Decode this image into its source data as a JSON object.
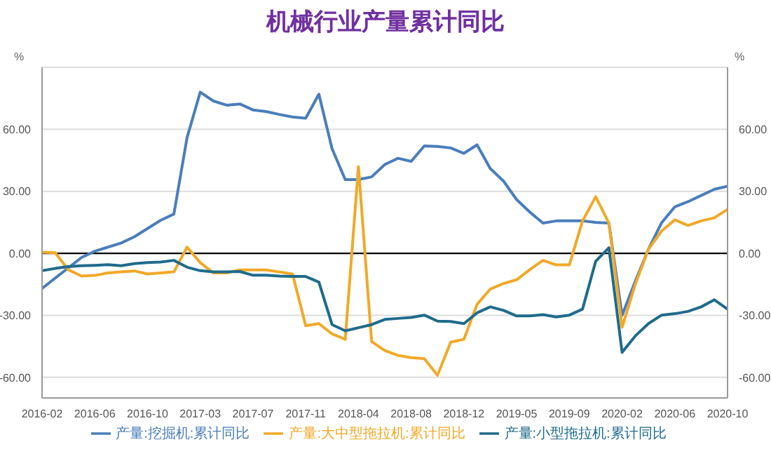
{
  "chart_data": {
    "type": "line",
    "title": "机械行业产量累计同比",
    "ylabel": "%",
    "y2label": "%",
    "categories": [
      "2016-02",
      null,
      null,
      null,
      "2016-06",
      null,
      null,
      null,
      "2016-10",
      null,
      null,
      null,
      "2017-03",
      null,
      null,
      null,
      "2017-07",
      null,
      null,
      null,
      "2017-11",
      null,
      null,
      null,
      "2018-04",
      null,
      null,
      null,
      "2018-08",
      null,
      null,
      null,
      "2018-12",
      null,
      null,
      null,
      "2019-05",
      null,
      null,
      null,
      "2019-09",
      null,
      null,
      null,
      "2020-02",
      null,
      null,
      null,
      "2020-06",
      null,
      null,
      null,
      "2020-10"
    ],
    "series": [
      {
        "name": "产量:挖掘机:累计同比",
        "color": "#4a7ebb",
        "values": [
          -17,
          -12,
          -7,
          -2,
          1,
          3,
          5,
          8,
          12,
          16,
          19,
          56,
          78,
          73.7,
          71.7,
          72.3,
          69.4,
          68.6,
          67.2,
          66,
          65.4,
          77,
          50.6,
          35.7,
          35.7,
          37,
          43,
          46,
          44.5,
          52,
          51.7,
          51,
          48.4,
          52.5,
          41,
          35,
          26,
          20,
          14.6,
          15.7,
          15.7,
          15.7,
          15,
          14.6,
          -30,
          -13.5,
          2,
          14.8,
          22.5,
          25,
          28,
          31,
          32.5
        ]
      },
      {
        "name": "产量:大中型拖拉机:累计同比",
        "color": "#f0a928",
        "values": [
          0.5,
          0.3,
          -8,
          -11,
          -10.7,
          -9.5,
          -9,
          -8.5,
          -10,
          -9.5,
          -9,
          3,
          -4.5,
          -9.5,
          -9.5,
          -8,
          -8,
          -8,
          -9,
          -10,
          -35,
          -34,
          -39,
          -41.6,
          42,
          -42.7,
          -47,
          -49.4,
          -50.5,
          -51,
          -59,
          -43,
          -41.6,
          -24.7,
          -17.3,
          -14.6,
          -12.8,
          -7.9,
          -3.4,
          -5.6,
          -5.6,
          15.7,
          27.4,
          14.6,
          -35.8,
          -15,
          2,
          10.8,
          16.2,
          13.5,
          15.7,
          17.2,
          21.3
        ]
      },
      {
        "name": "产量:小型拖拉机:累计同比",
        "color": "#1f6b8c",
        "values": [
          -8.4,
          -7.3,
          -6.4,
          -6,
          -5.8,
          -5.5,
          -6,
          -5,
          -4.5,
          -4.2,
          -3.4,
          -6.7,
          -8.4,
          -9,
          -9,
          -8.8,
          -10.6,
          -10.6,
          -11,
          -11.2,
          -11.2,
          -13.9,
          -34.5,
          -37.5,
          -36,
          -34.5,
          -32,
          -31.5,
          -31,
          -29.9,
          -32.8,
          -33,
          -34,
          -28.8,
          -25.9,
          -27.6,
          -30.3,
          -30.3,
          -29.7,
          -30.8,
          -29.9,
          -27,
          -3.8,
          2.7,
          -47.9,
          -40,
          -34,
          -29.9,
          -29.2,
          -28.1,
          -25.9,
          -22.5,
          -27
        ]
      }
    ],
    "ylim": [
      -70,
      90
    ],
    "yticks": [
      {
        "value": -60,
        "label": "-60.00"
      },
      {
        "value": -30,
        "label": "-30.00"
      },
      {
        "value": 0,
        "label": "0.00"
      },
      {
        "value": 30,
        "label": "30.00"
      },
      {
        "value": 60,
        "label": "60.00"
      }
    ],
    "y2lim": [
      -70,
      90
    ],
    "y2ticks": [
      {
        "value": -60,
        "label": "-60.00"
      },
      {
        "value": -30,
        "label": "-30.00"
      },
      {
        "value": 0,
        "label": "0.00"
      },
      {
        "value": 30,
        "label": "30.00"
      },
      {
        "value": 60,
        "label": "60.00"
      }
    ],
    "ref_lines": [
      {
        "axis": "y",
        "value": 0,
        "color": "#000000"
      }
    ],
    "grid": "y",
    "legend": "bottom",
    "marker": "none",
    "line_style": "solid"
  }
}
